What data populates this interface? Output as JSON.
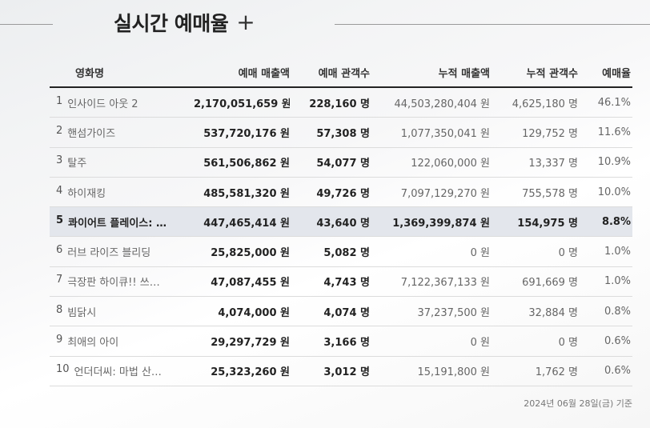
{
  "header": {
    "title": "실시간 예매율",
    "plus_label": "+"
  },
  "table": {
    "columns": [
      "영화명",
      "예매 매출액",
      "예매 관객수",
      "누적 매출액",
      "누적 관객수",
      "예매율"
    ],
    "rows": [
      {
        "rank": "1",
        "name": "인사이드 아웃 2",
        "sales": "2,170,051,659 원",
        "audience": "228,160 명",
        "cum_sales": "44,503,280,404 원",
        "cum_audience": "4,625,180 명",
        "rate": "46.1%"
      },
      {
        "rank": "2",
        "name": "핸섬가이즈",
        "sales": "537,720,176 원",
        "audience": "57,308 명",
        "cum_sales": "1,077,350,041 원",
        "cum_audience": "129,752 명",
        "rate": "11.6%"
      },
      {
        "rank": "3",
        "name": "탈주",
        "sales": "561,506,862 원",
        "audience": "54,077 명",
        "cum_sales": "122,060,000 원",
        "cum_audience": "13,337 명",
        "rate": "10.9%"
      },
      {
        "rank": "4",
        "name": "하이재킹",
        "sales": "485,581,320 원",
        "audience": "49,726 명",
        "cum_sales": "7,097,129,270 원",
        "cum_audience": "755,578 명",
        "rate": "10.0%"
      },
      {
        "rank": "5",
        "name": "콰이어트 플레이스: …",
        "sales": "447,465,414 원",
        "audience": "43,640 명",
        "cum_sales": "1,369,399,874 원",
        "cum_audience": "154,975 명",
        "rate": "8.8%"
      },
      {
        "rank": "6",
        "name": "러브 라이즈 블리딩",
        "sales": "25,825,000 원",
        "audience": "5,082 명",
        "cum_sales": "0 원",
        "cum_audience": "0 명",
        "rate": "1.0%"
      },
      {
        "rank": "7",
        "name": "극장판 하이큐!! 쓰…",
        "sales": "47,087,455 원",
        "audience": "4,743 명",
        "cum_sales": "7,122,367,133 원",
        "cum_audience": "691,669 명",
        "rate": "1.0%"
      },
      {
        "rank": "8",
        "name": "빔닭시",
        "sales": "4,074,000 원",
        "audience": "4,074 명",
        "cum_sales": "37,237,500 원",
        "cum_audience": "32,884 명",
        "rate": "0.8%"
      },
      {
        "rank": "9",
        "name": "최애의 아이",
        "sales": "29,297,729 원",
        "audience": "3,166 명",
        "cum_sales": "0 원",
        "cum_audience": "0 명",
        "rate": "0.6%"
      },
      {
        "rank": "10",
        "name": "언더더씨: 마법 산…",
        "sales": "25,323,260 원",
        "audience": "3,012 명",
        "cum_sales": "15,191,800 원",
        "cum_audience": "1,762 명",
        "rate": "0.6%"
      }
    ]
  },
  "footer": {
    "date_note": "2024년 06월 28일(금) 기준"
  },
  "colors": {
    "highlight_row": "#e3e6ec",
    "header_rule": "#222222",
    "row_rule": "#dcdcdc"
  }
}
